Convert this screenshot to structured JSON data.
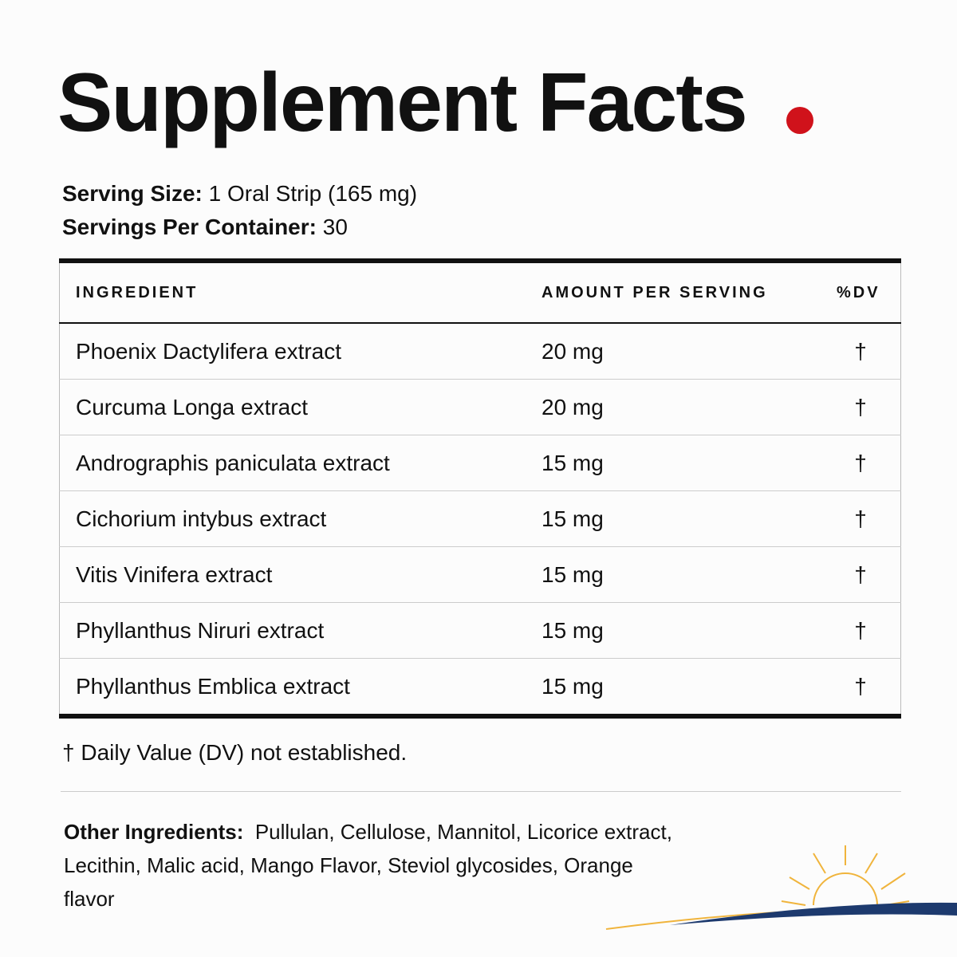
{
  "header": {
    "title": "Supplement Facts"
  },
  "serving": [
    {
      "label": "Serving Size:",
      "value": "1 Oral Strip (165 mg)"
    },
    {
      "label": "Servings Per Container:",
      "value": "30"
    }
  ],
  "table": {
    "columns": [
      "INGREDIENT",
      "AMOUNT PER SERVING",
      "%DV"
    ],
    "rows": [
      [
        "Phoenix Dactylifera extract",
        "20 mg",
        "†"
      ],
      [
        "Curcuma Longa extract",
        "20 mg",
        "†"
      ],
      [
        "Andrographis paniculata extract",
        "15 mg",
        "†"
      ],
      [
        "Cichorium intybus extract",
        "15 mg",
        "†"
      ],
      [
        "Vitis Vinifera extract",
        "15 mg",
        "†"
      ],
      [
        "Phyllanthus Niruri extract",
        "15 mg",
        "†"
      ],
      [
        "Phyllanthus Emblica extract",
        "15 mg",
        "†"
      ]
    ]
  },
  "footnote": "† Daily Value (DV) not established.",
  "other": {
    "label": "Other Ingredients:",
    "text": "Pullulan, Cellulose, Mannitol, Licorice extract, Lecithin, Malic acid, Mango Flavor, Steviol glycosides, Orange flavor"
  }
}
